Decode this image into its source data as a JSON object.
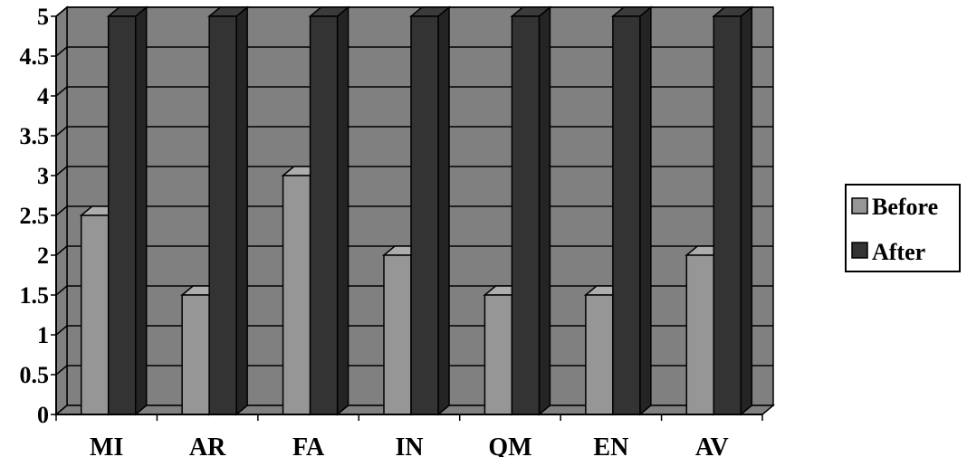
{
  "chart_data": {
    "type": "bar",
    "style": "3d-clustered-column",
    "categories": [
      "MI",
      "AR",
      "FA",
      "IN",
      "QM",
      "EN",
      "AV"
    ],
    "series": [
      {
        "name": "Before",
        "values": [
          2.5,
          1.5,
          3,
          2,
          1.5,
          1.5,
          2
        ],
        "color": "#969696"
      },
      {
        "name": "After",
        "values": [
          5,
          5,
          5,
          5,
          5,
          5,
          5
        ],
        "color": "#333333"
      }
    ],
    "yticks": [
      "0",
      "0.5",
      "1",
      "1.5",
      "2",
      "2.5",
      "3",
      "3.5",
      "4",
      "4.5",
      "5"
    ],
    "ylim": [
      0,
      5
    ],
    "y_step": 0.5,
    "grid": true,
    "wall_color": "#808080",
    "legend": "right"
  }
}
